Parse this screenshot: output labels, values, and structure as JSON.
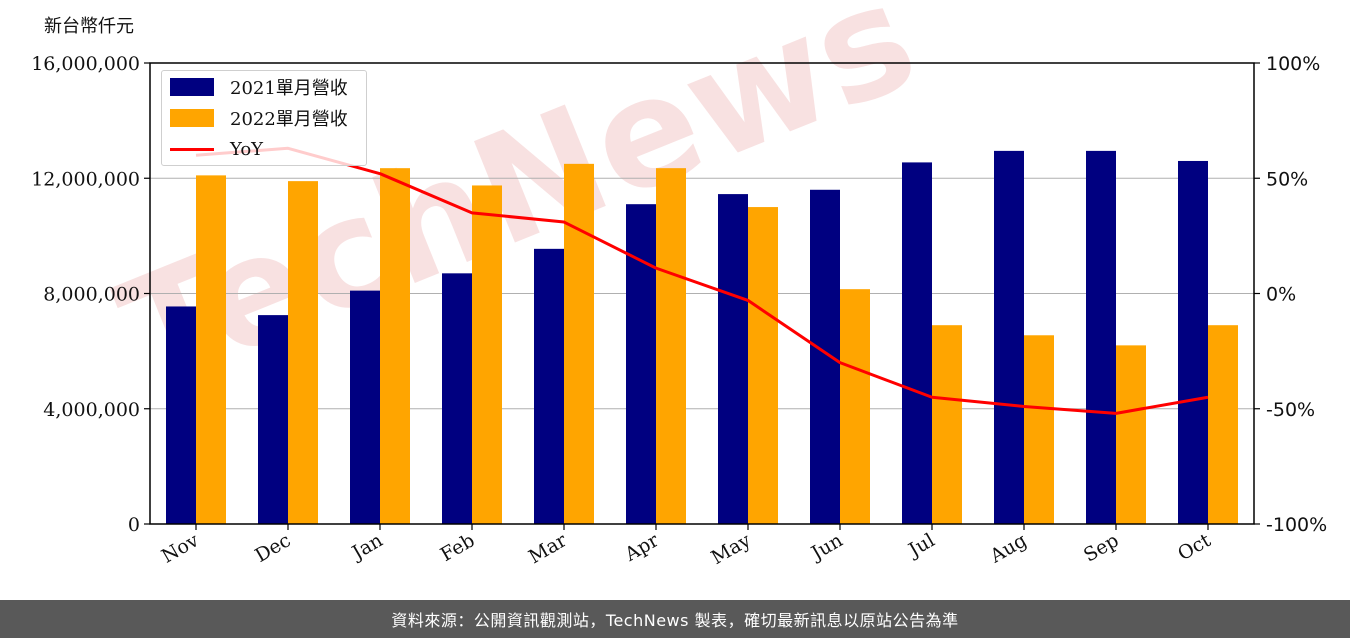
{
  "unit_label": "新台幣仟元",
  "footer_text": "資料來源：公開資訊觀測站，TechNews 製表，確切最新訊息以原站公告為準",
  "watermark_text": "TechNews",
  "colors": {
    "bar2021": "#000080",
    "bar2022": "#FFA500",
    "yoy": "#FF0000",
    "footer_bg": "#595959",
    "watermark": "#f3c8c8"
  },
  "chart_data": {
    "type": "bar",
    "categories": [
      "Nov",
      "Dec",
      "Jan",
      "Feb",
      "Mar",
      "Apr",
      "May",
      "Jun",
      "Jul",
      "Aug",
      "Sep",
      "Oct"
    ],
    "series": [
      {
        "name": "2021單月營收",
        "type": "bar",
        "axis": "left",
        "values": [
          7550000,
          7250000,
          8100000,
          8700000,
          9550000,
          11100000,
          11450000,
          11600000,
          12550000,
          12950000,
          12950000,
          12600000
        ]
      },
      {
        "name": "2022單月營收",
        "type": "bar",
        "axis": "left",
        "values": [
          12100000,
          11900000,
          12350000,
          11750000,
          12500000,
          12350000,
          11000000,
          8150000,
          6900000,
          6550000,
          6200000,
          6900000
        ]
      },
      {
        "name": "YoY",
        "type": "line",
        "axis": "right",
        "values": [
          60,
          63,
          52,
          35,
          31,
          11,
          -3,
          -30,
          -45,
          -49,
          -52,
          -45
        ]
      }
    ],
    "y_left": {
      "ylim": [
        0,
        16000000
      ],
      "ticks": [
        0,
        4000000,
        8000000,
        12000000,
        16000000
      ],
      "tick_labels": [
        "0",
        "4,000,000",
        "8,000,000",
        "12,000,000",
        "16,000,000"
      ]
    },
    "y_right": {
      "ylim": [
        -100,
        100
      ],
      "ticks": [
        -100,
        -50,
        0,
        50,
        100
      ],
      "tick_labels": [
        "-100%",
        "-50%",
        "0%",
        "50%",
        "100%"
      ]
    },
    "grid": "horizontal",
    "legend_position": "top-left"
  }
}
